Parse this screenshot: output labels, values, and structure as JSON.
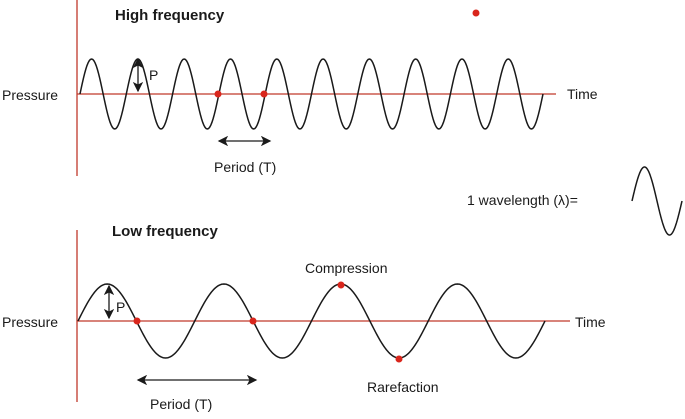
{
  "colors": {
    "axis": "#c0392b",
    "wave": "#1a1a1a",
    "marker": "#d9261c"
  },
  "high": {
    "title": "High frequency",
    "y_label": "Pressure",
    "x_label": "Time",
    "amplitude_label": "P",
    "period_label": "Period (T)",
    "cycles": 10
  },
  "low": {
    "title": "Low frequency",
    "y_label": "Pressure",
    "x_label": "Time",
    "amplitude_label": "P",
    "period_label": "Period (T)",
    "compression_label": "Compression",
    "rarefaction_label": "Rarefaction",
    "cycles": 4
  },
  "wavelength_label": "1 wavelength (λ)="
}
